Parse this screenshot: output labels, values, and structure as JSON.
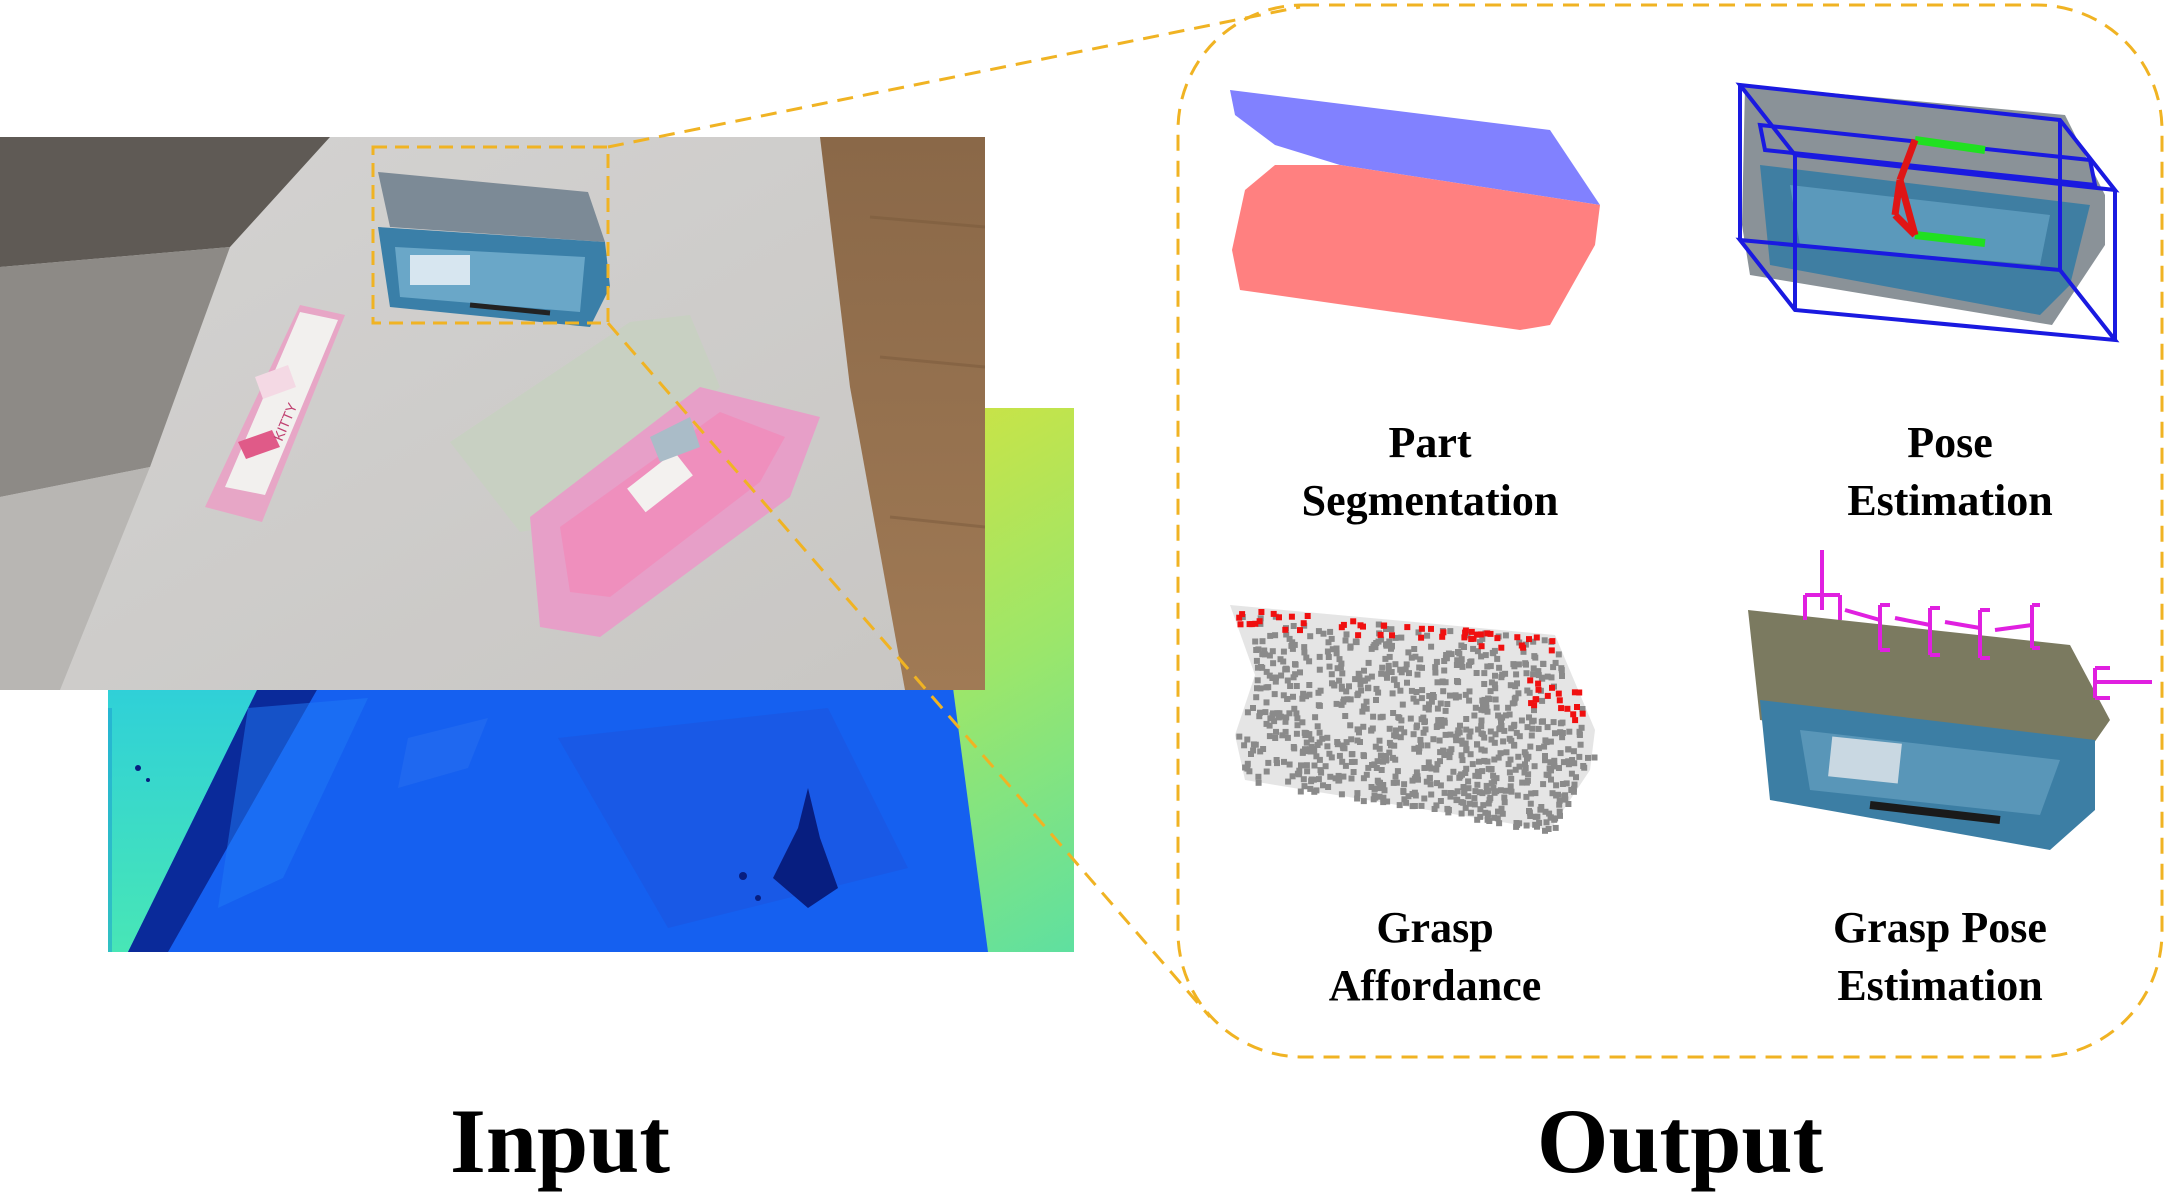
{
  "input_label": "Input",
  "output_label": "Output",
  "rgb_sticker_text": "KITTY",
  "tasks": [
    {
      "id": "part-segmentation",
      "line1": "Part",
      "line2": "Segmentation"
    },
    {
      "id": "pose-estimation",
      "line1": "Pose",
      "line2": "Estimation"
    },
    {
      "id": "grasp-affordance",
      "line1": "Grasp",
      "line2": "Affordance"
    },
    {
      "id": "grasp-pose-estimation",
      "line1": "Grasp Pose",
      "line2": "Estimation"
    }
  ],
  "colors": {
    "dashed_highlight": "#F0B323",
    "segment_lid": "#8181FF",
    "segment_base": "#FF8080",
    "bbox": "#1A1AE0",
    "axis_red": "#E01515",
    "axis_green": "#20E020",
    "affordance_gray": "#8A8A8A",
    "affordance_red": "#F01010",
    "grasp_magenta": "#E020E0"
  }
}
